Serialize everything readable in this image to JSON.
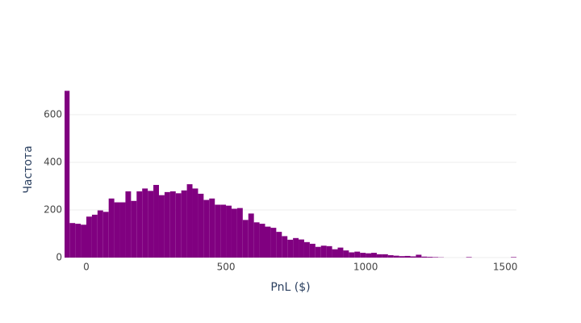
{
  "chart_data": {
    "type": "histogram",
    "x_label": "PnL ($)",
    "y_label": "Частота",
    "color": "#800080",
    "bins": [
      -80,
      -60,
      -40,
      -20,
      0,
      20,
      40,
      60,
      80,
      100,
      120,
      140,
      160,
      180,
      200,
      220,
      240,
      260,
      280,
      300,
      320,
      340,
      360,
      380,
      400,
      420,
      440,
      460,
      480,
      500,
      520,
      540,
      560,
      580,
      600,
      620,
      640,
      660,
      680,
      700,
      720,
      740,
      760,
      780,
      800,
      820,
      840,
      860,
      880,
      900,
      920,
      940,
      960,
      980,
      1000,
      1020,
      1040,
      1060,
      1080,
      1100,
      1120,
      1140,
      1160,
      1180,
      1200,
      1220,
      1240,
      1260,
      1280,
      1300,
      1320,
      1340,
      1360,
      1380,
      1400,
      1420,
      1440,
      1460,
      1480,
      1500,
      1520,
      1540
    ],
    "counts": [
      700,
      145,
      142,
      138,
      172,
      180,
      198,
      192,
      248,
      232,
      232,
      278,
      238,
      278,
      290,
      280,
      305,
      262,
      275,
      278,
      270,
      282,
      308,
      290,
      268,
      242,
      248,
      222,
      222,
      218,
      205,
      208,
      158,
      185,
      148,
      142,
      130,
      125,
      108,
      90,
      75,
      82,
      76,
      65,
      58,
      45,
      50,
      48,
      35,
      42,
      30,
      22,
      25,
      20,
      18,
      20,
      14,
      14,
      10,
      8,
      6,
      7,
      5,
      12,
      4,
      3,
      2,
      1,
      0,
      0,
      0,
      0,
      2,
      0,
      0,
      0,
      0,
      0,
      0,
      0,
      2
    ],
    "xlim": [
      -78,
      1540
    ],
    "ylim": [
      0,
      705
    ],
    "xticks": [
      0,
      500,
      1000,
      1500
    ],
    "yticks": [
      0,
      200,
      400,
      600
    ],
    "grid": true
  }
}
